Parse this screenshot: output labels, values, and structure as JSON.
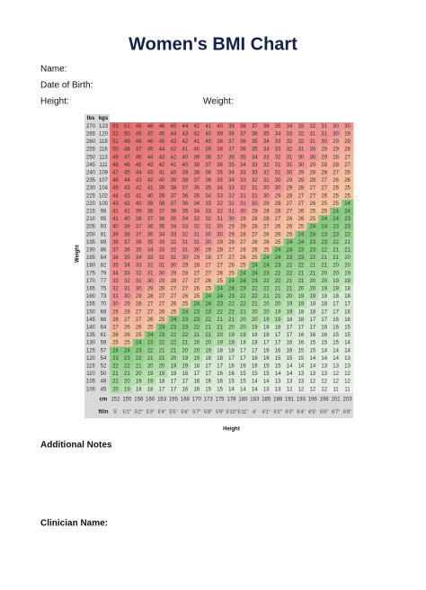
{
  "header": {
    "title": "Women's BMI Chart"
  },
  "fields": {
    "name": "Name:",
    "dob": "Date of Birth:",
    "height": "Height:",
    "weight": "Weight:"
  },
  "table": {
    "lbs_label": "lbs",
    "kgs_label": "kgs",
    "cm_label": "cm",
    "ftin_label": "ft/in",
    "x_label": "Height",
    "y_label": "Weight",
    "lbs": [
      270,
      265,
      260,
      255,
      250,
      245,
      240,
      235,
      230,
      225,
      220,
      215,
      210,
      205,
      200,
      195,
      190,
      185,
      180,
      175,
      170,
      165,
      160,
      155,
      150,
      145,
      140,
      135,
      130,
      125,
      120,
      115,
      110,
      105,
      100
    ],
    "kgs": [
      123,
      120,
      118,
      116,
      113,
      111,
      109,
      107,
      104,
      102,
      100,
      98,
      95,
      93,
      91,
      89,
      86,
      84,
      82,
      79,
      77,
      75,
      73,
      70,
      68,
      66,
      64,
      61,
      59,
      57,
      54,
      52,
      50,
      48,
      45
    ],
    "cm": [
      152,
      155,
      158,
      160,
      163,
      165,
      168,
      170,
      173,
      175,
      178,
      180,
      183,
      185,
      188,
      191,
      193,
      196,
      198,
      201,
      203
    ],
    "ftin": [
      "5'",
      "5'1\"",
      "5'2\"",
      "5'3\"",
      "5'4\"",
      "5'5\"",
      "5'6\"",
      "5'7\"",
      "5'8\"",
      "5'9\"",
      "5'10\"",
      "5'11\"",
      "6'",
      "6'1\"",
      "6'2\"",
      "6'3\"",
      "6'4\"",
      "6'5\"",
      "6'6\"",
      "6'7\"",
      "6'8\""
    ],
    "rows": [
      [
        53,
        51,
        49,
        48,
        46,
        45,
        44,
        42,
        41,
        40,
        39,
        38,
        37,
        36,
        35,
        34,
        33,
        32,
        31,
        30,
        30
      ],
      [
        52,
        50,
        48,
        47,
        45,
        44,
        43,
        42,
        40,
        39,
        38,
        37,
        36,
        35,
        34,
        33,
        32,
        31,
        31,
        30,
        29
      ],
      [
        51,
        49,
        48,
        46,
        45,
        43,
        42,
        41,
        40,
        38,
        37,
        36,
        35,
        34,
        33,
        32,
        32,
        31,
        30,
        29,
        29
      ],
      [
        50,
        48,
        47,
        45,
        44,
        42,
        41,
        40,
        39,
        38,
        37,
        36,
        35,
        34,
        33,
        32,
        31,
        30,
        29,
        29,
        28
      ],
      [
        49,
        47,
        46,
        44,
        43,
        42,
        40,
        39,
        38,
        37,
        36,
        35,
        34,
        33,
        32,
        31,
        30,
        30,
        29,
        28,
        27
      ],
      [
        48,
        46,
        45,
        43,
        42,
        41,
        40,
        38,
        37,
        36,
        35,
        34,
        33,
        32,
        31,
        31,
        30,
        29,
        28,
        28,
        27
      ],
      [
        47,
        45,
        44,
        43,
        41,
        40,
        39,
        38,
        36,
        35,
        34,
        33,
        33,
        32,
        31,
        30,
        29,
        28,
        28,
        27,
        26
      ],
      [
        46,
        44,
        43,
        42,
        40,
        39,
        38,
        37,
        36,
        35,
        34,
        33,
        32,
        31,
        30,
        29,
        29,
        28,
        27,
        26,
        26
      ],
      [
        45,
        43,
        42,
        41,
        39,
        38,
        37,
        36,
        35,
        34,
        33,
        32,
        31,
        30,
        30,
        29,
        28,
        27,
        27,
        26,
        25
      ],
      [
        44,
        43,
        41,
        40,
        39,
        37,
        36,
        35,
        34,
        33,
        32,
        31,
        31,
        30,
        29,
        28,
        27,
        27,
        26,
        25,
        25
      ],
      [
        43,
        42,
        40,
        39,
        38,
        37,
        36,
        34,
        33,
        32,
        32,
        31,
        30,
        29,
        28,
        27,
        27,
        26,
        25,
        25,
        24
      ],
      [
        42,
        41,
        39,
        38,
        37,
        36,
        35,
        34,
        33,
        32,
        31,
        30,
        29,
        28,
        28,
        27,
        26,
        25,
        25,
        24,
        24
      ],
      [
        41,
        40,
        38,
        37,
        36,
        35,
        34,
        33,
        32,
        31,
        30,
        29,
        28,
        28,
        27,
        26,
        26,
        25,
        24,
        24,
        23
      ],
      [
        40,
        39,
        37,
        36,
        35,
        34,
        33,
        32,
        31,
        30,
        29,
        29,
        28,
        27,
        26,
        26,
        25,
        24,
        24,
        23,
        23
      ],
      [
        39,
        38,
        37,
        35,
        34,
        33,
        32,
        31,
        30,
        30,
        29,
        28,
        27,
        26,
        26,
        25,
        24,
        24,
        23,
        23,
        22
      ],
      [
        38,
        37,
        36,
        35,
        33,
        32,
        31,
        31,
        30,
        29,
        28,
        27,
        26,
        26,
        25,
        24,
        24,
        23,
        23,
        22,
        21
      ],
      [
        37,
        36,
        35,
        34,
        33,
        32,
        31,
        30,
        29,
        28,
        27,
        26,
        26,
        25,
        24,
        24,
        23,
        23,
        22,
        21,
        21
      ],
      [
        36,
        35,
        34,
        33,
        32,
        31,
        30,
        29,
        28,
        27,
        27,
        26,
        25,
        24,
        24,
        23,
        23,
        22,
        21,
        21,
        20
      ],
      [
        35,
        34,
        33,
        32,
        31,
        30,
        29,
        28,
        27,
        27,
        26,
        25,
        24,
        24,
        23,
        22,
        22,
        21,
        21,
        20,
        20
      ],
      [
        34,
        33,
        32,
        31,
        30,
        29,
        28,
        27,
        27,
        26,
        25,
        24,
        24,
        23,
        22,
        22,
        21,
        21,
        20,
        20,
        19
      ],
      [
        33,
        32,
        31,
        30,
        29,
        28,
        27,
        27,
        26,
        25,
        24,
        24,
        23,
        22,
        22,
        21,
        21,
        20,
        20,
        19,
        19
      ],
      [
        32,
        31,
        30,
        29,
        28,
        27,
        27,
        26,
        25,
        24,
        24,
        23,
        22,
        22,
        21,
        21,
        20,
        20,
        19,
        19,
        18
      ],
      [
        31,
        30,
        29,
        28,
        27,
        27,
        26,
        25,
        24,
        24,
        23,
        22,
        22,
        21,
        21,
        20,
        19,
        19,
        18,
        18,
        18
      ],
      [
        30,
        29,
        28,
        27,
        27,
        26,
        25,
        24,
        24,
        23,
        22,
        22,
        21,
        20,
        20,
        19,
        19,
        18,
        18,
        17,
        17
      ],
      [
        29,
        28,
        27,
        27,
        26,
        25,
        24,
        23,
        23,
        22,
        22,
        21,
        20,
        20,
        19,
        19,
        18,
        18,
        17,
        17,
        16
      ],
      [
        28,
        27,
        27,
        26,
        25,
        24,
        23,
        23,
        22,
        21,
        21,
        20,
        20,
        19,
        19,
        18,
        18,
        17,
        17,
        16,
        16
      ],
      [
        27,
        26,
        26,
        25,
        24,
        23,
        23,
        22,
        21,
        21,
        20,
        20,
        19,
        18,
        18,
        17,
        17,
        17,
        16,
        16,
        15
      ],
      [
        26,
        26,
        25,
        24,
        23,
        22,
        22,
        21,
        21,
        20,
        19,
        19,
        18,
        18,
        17,
        17,
        16,
        16,
        16,
        15,
        15
      ],
      [
        25,
        25,
        24,
        23,
        22,
        22,
        21,
        20,
        20,
        19,
        19,
        18,
        18,
        17,
        17,
        16,
        16,
        15,
        15,
        15,
        14
      ],
      [
        24,
        24,
        23,
        22,
        21,
        21,
        20,
        20,
        19,
        18,
        18,
        17,
        17,
        16,
        16,
        16,
        15,
        15,
        14,
        14,
        14
      ],
      [
        23,
        23,
        22,
        21,
        21,
        20,
        19,
        19,
        18,
        18,
        17,
        17,
        16,
        16,
        15,
        15,
        15,
        14,
        14,
        14,
        13
      ],
      [
        22,
        22,
        21,
        20,
        20,
        19,
        19,
        18,
        17,
        17,
        16,
        16,
        16,
        15,
        15,
        14,
        14,
        14,
        13,
        13,
        13
      ],
      [
        21,
        21,
        20,
        19,
        19,
        18,
        18,
        17,
        17,
        16,
        16,
        15,
        15,
        15,
        14,
        14,
        13,
        13,
        13,
        12,
        12
      ],
      [
        21,
        20,
        19,
        19,
        18,
        17,
        17,
        16,
        16,
        16,
        15,
        15,
        14,
        14,
        13,
        13,
        13,
        12,
        12,
        12,
        12
      ],
      [
        20,
        19,
        18,
        18,
        17,
        17,
        16,
        16,
        15,
        15,
        14,
        14,
        14,
        13,
        13,
        12,
        12,
        12,
        12,
        11,
        11
      ]
    ]
  },
  "footer": {
    "notes": "Additional Notes",
    "clinician": "Clinician Name:"
  }
}
